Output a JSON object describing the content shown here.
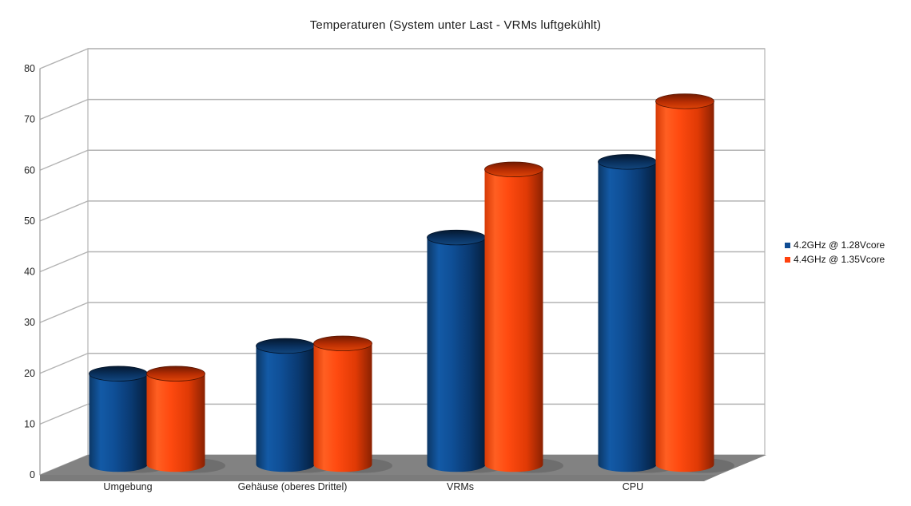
{
  "title": "Temperaturen (System unter Last - VRMs luftgekühlt)",
  "chart_data": {
    "type": "bar",
    "style": "3d-cylinder-column-chart",
    "title": "Temperaturen (System unter Last - VRMs luftgekühlt)",
    "categories": [
      "Umgebung",
      "Gehäuse (oberes Drittel)",
      "VRMs",
      "CPU"
    ],
    "series": [
      {
        "name": "4.2GHz @ 1.28Vcore",
        "color": "#0f4c93",
        "values": [
          18,
          23.5,
          45,
          60
        ]
      },
      {
        "name": "4.4GHz @ 1.35Vcore",
        "color": "#ff420e",
        "values": [
          18,
          24,
          58.5,
          72
        ]
      }
    ],
    "xlabel": "",
    "ylabel": "",
    "ylim": [
      0,
      80
    ],
    "y_ticks": [
      0,
      10,
      20,
      30,
      40,
      50,
      60,
      70,
      80
    ],
    "grid": true,
    "legend_position": "right"
  },
  "colors": {
    "series_blue": "#0f4c93",
    "series_orange": "#ff420e",
    "gridline": "#b3b3b3",
    "axis": "#9a9a9a",
    "floor": "#828282",
    "floor_face": "#7b7b7b",
    "background": "#ffffff",
    "text": "#222222"
  }
}
